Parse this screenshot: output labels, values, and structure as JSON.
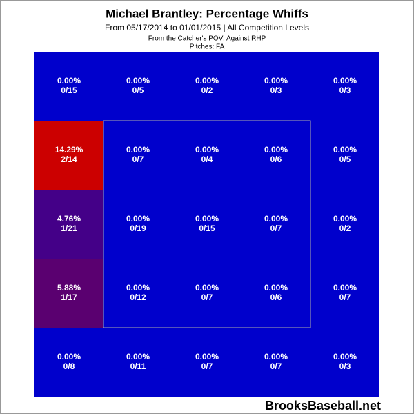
{
  "chart_data": {
    "type": "heatmap",
    "title": "Michael Brantley: Percentage Whiffs",
    "subtitle": "From 05/17/2014 to 01/01/2015 | All Competition Levels",
    "notes": [
      "From the Catcher's POV:  Against RHP",
      "Pitches:  FA"
    ],
    "watermark": "BrooksBaseball.net",
    "values": [
      [
        0,
        0,
        0,
        0,
        0
      ],
      [
        14.29,
        0,
        0,
        0,
        0
      ],
      [
        4.76,
        0,
        0,
        0,
        0
      ],
      [
        5.88,
        0,
        0,
        0,
        0
      ],
      [
        0,
        0,
        0,
        0,
        0
      ]
    ],
    "value_labels": [
      [
        "0.00%",
        "0.00%",
        "0.00%",
        "0.00%",
        "0.00%"
      ],
      [
        "14.29%",
        "0.00%",
        "0.00%",
        "0.00%",
        "0.00%"
      ],
      [
        "4.76%",
        "0.00%",
        "0.00%",
        "0.00%",
        "0.00%"
      ],
      [
        "5.88%",
        "0.00%",
        "0.00%",
        "0.00%",
        "0.00%"
      ],
      [
        "0.00%",
        "0.00%",
        "0.00%",
        "0.00%",
        "0.00%"
      ]
    ],
    "counts": [
      [
        "0/15",
        "0/5",
        "0/2",
        "0/3",
        "0/3"
      ],
      [
        "2/14",
        "0/7",
        "0/4",
        "0/6",
        "0/5"
      ],
      [
        "1/21",
        "0/19",
        "0/15",
        "0/7",
        "0/2"
      ],
      [
        "1/17",
        "0/12",
        "0/7",
        "0/6",
        "0/7"
      ],
      [
        "0/8",
        "0/11",
        "0/7",
        "0/7",
        "0/3"
      ]
    ],
    "colors": [
      [
        "#0000cc",
        "#0000cc",
        "#0000cc",
        "#0000cc",
        "#0000cc"
      ],
      [
        "#cc0000",
        "#0000cc",
        "#0000cc",
        "#0000cc",
        "#0000cc"
      ],
      [
        "#440088",
        "#0000cc",
        "#0000cc",
        "#0000cc",
        "#0000cc"
      ],
      [
        "#5a0070",
        "#0000cc",
        "#0000cc",
        "#0000cc",
        "#0000cc"
      ],
      [
        "#0000cc",
        "#0000cc",
        "#0000cc",
        "#0000cc",
        "#0000cc"
      ]
    ]
  }
}
